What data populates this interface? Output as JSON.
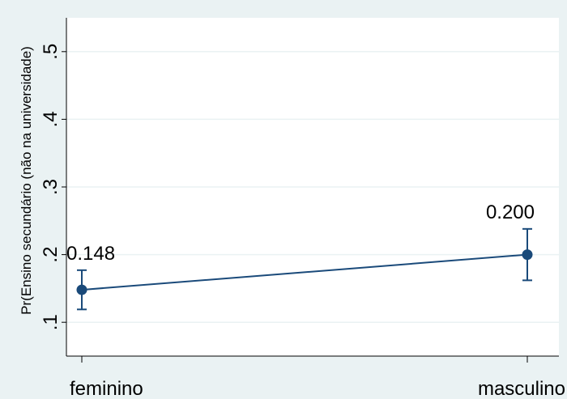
{
  "chart_data": {
    "type": "line",
    "title": "",
    "xlabel": "",
    "ylabel": "Pr(Ensino secundário (não na universidade)",
    "categories": [
      "feminino",
      "masculino"
    ],
    "series": [
      {
        "values": [
          0.148,
          0.2
        ],
        "ci_low": [
          0.119,
          0.162
        ],
        "ci_high": [
          0.177,
          0.238
        ],
        "labels": [
          "0.148",
          "0.200"
        ]
      }
    ],
    "y_ticks": [
      0.1,
      0.2,
      0.3,
      0.4,
      0.5
    ],
    "y_tick_labels": [
      ".1",
      ".2",
      ".3",
      ".4",
      ".5"
    ],
    "ylim": [
      0.05,
      0.55
    ],
    "grid": true,
    "colors": {
      "background": "#eaf2f3",
      "plot": "#ffffff",
      "series": "#1a4a7a",
      "grid": "#eaf2f3"
    }
  }
}
